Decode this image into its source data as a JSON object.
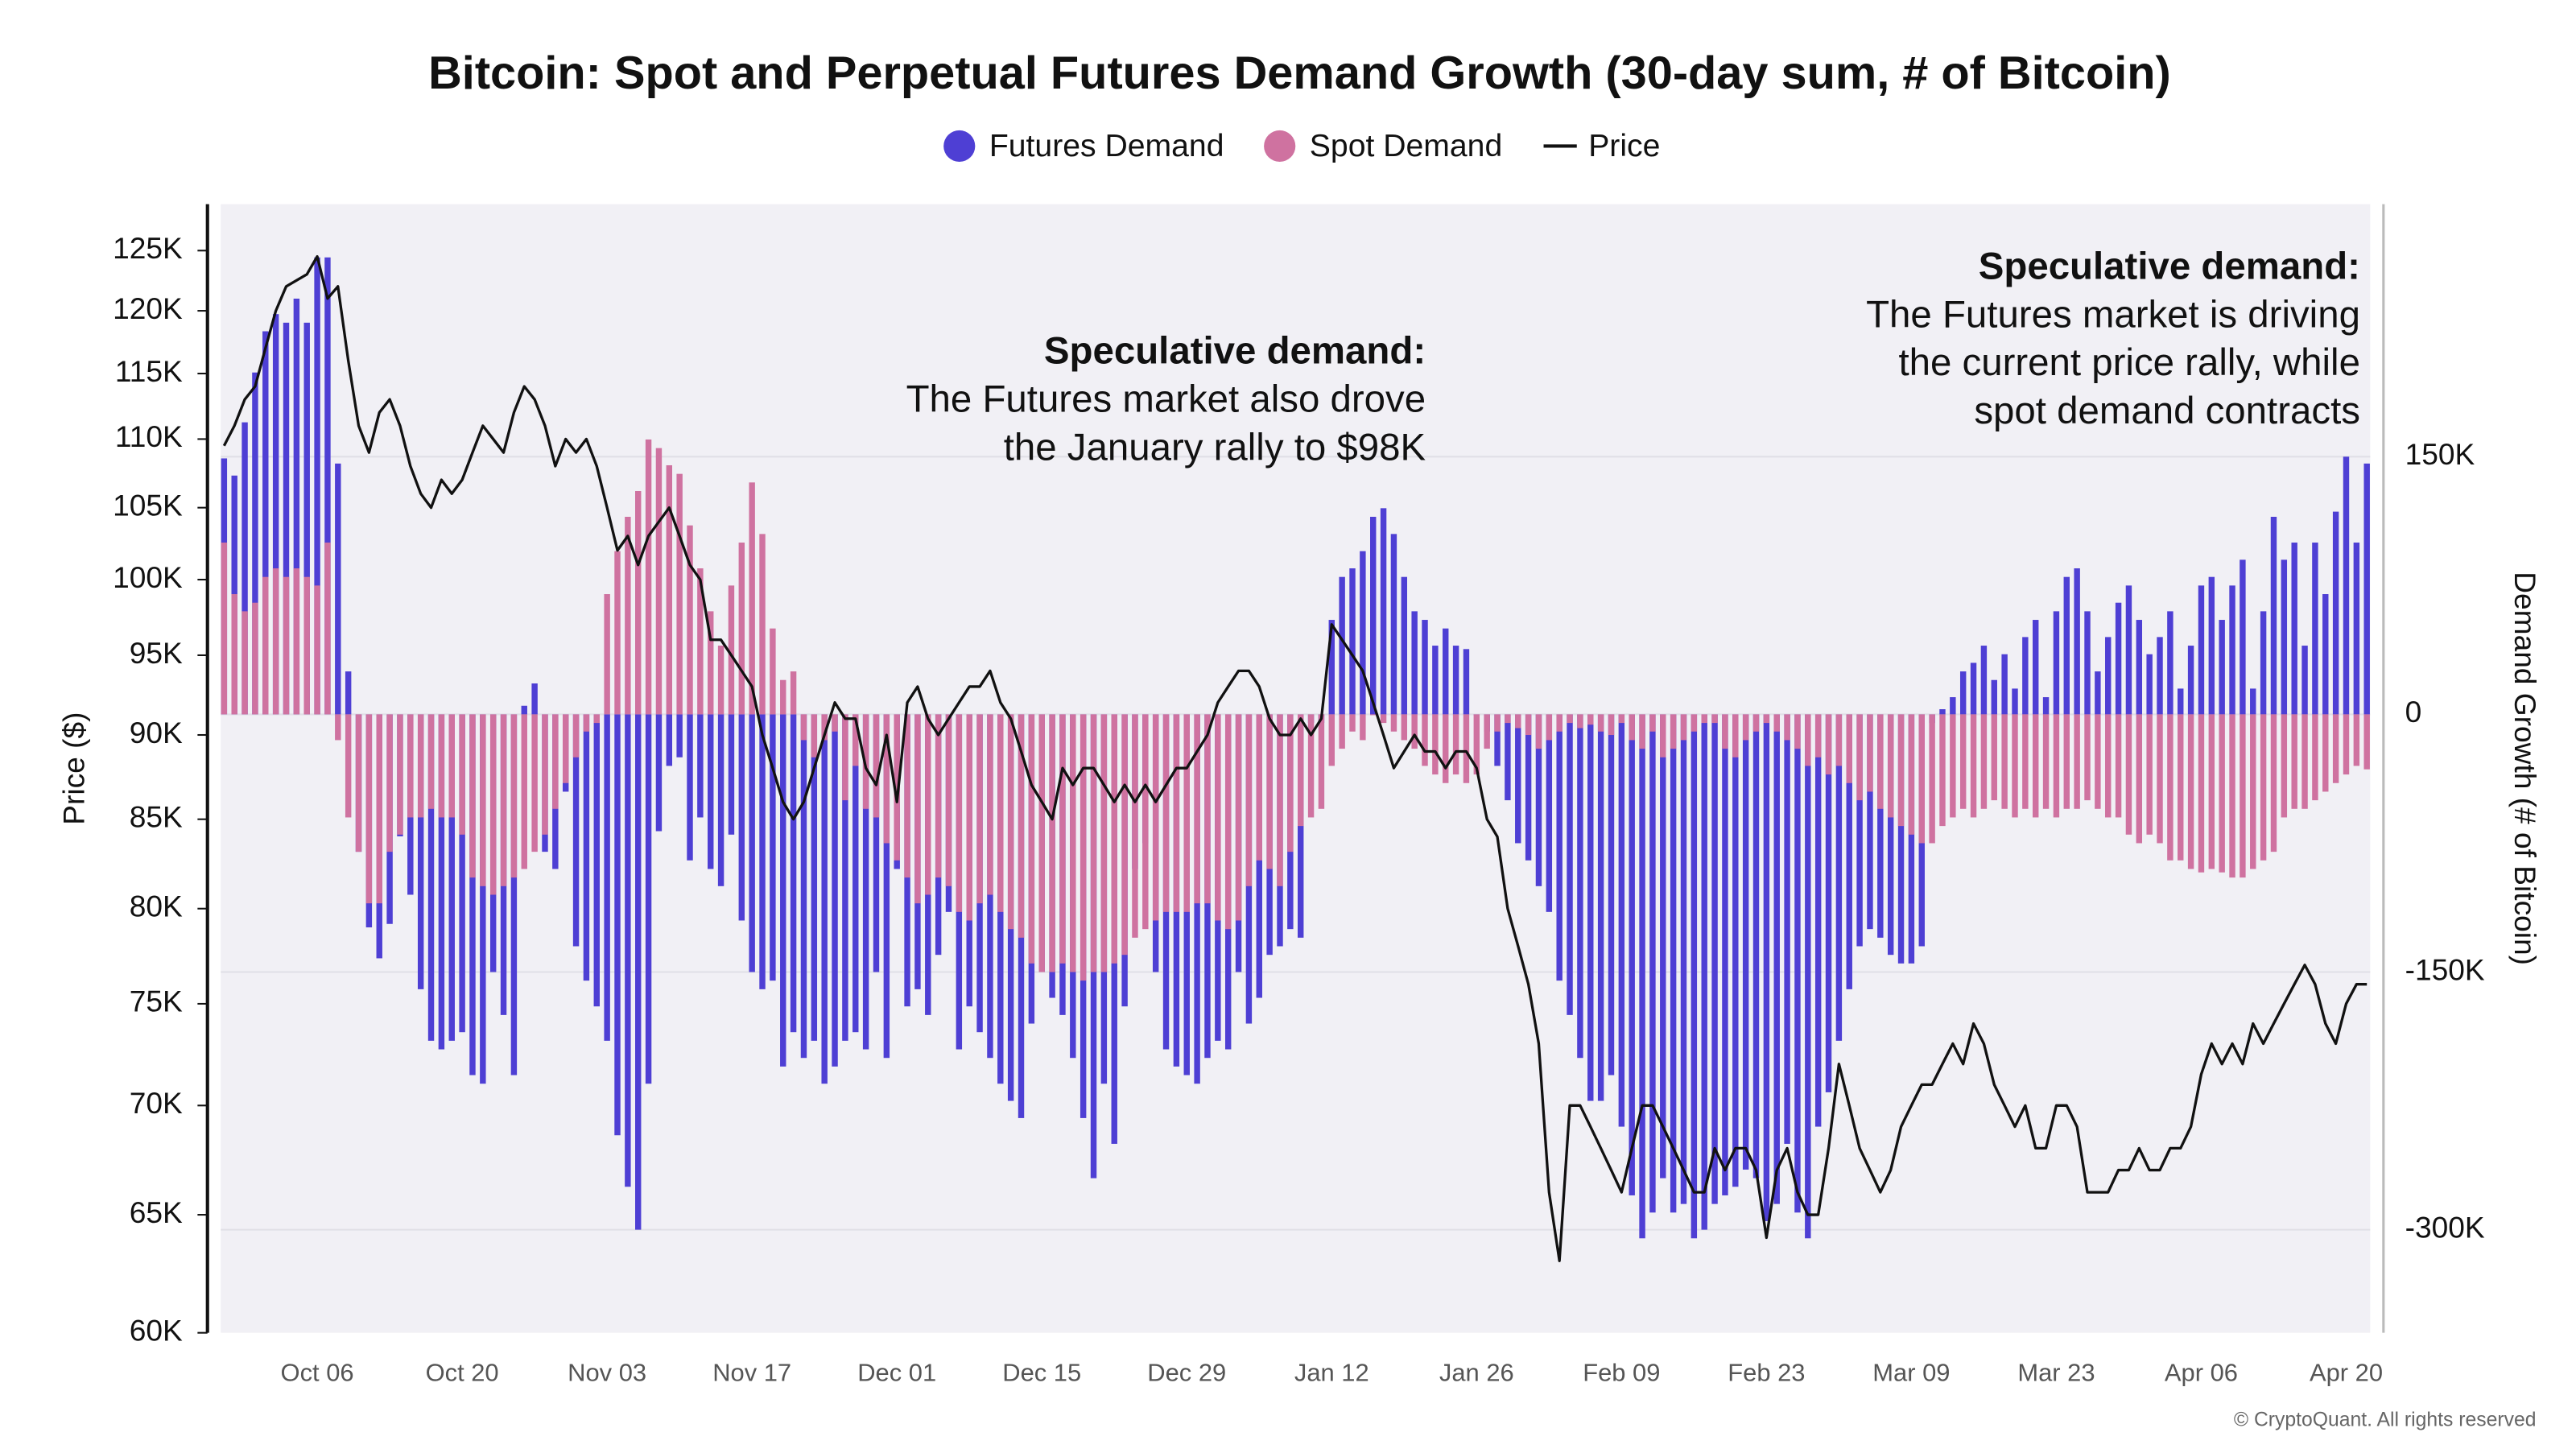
{
  "chart_data": {
    "type": "bar",
    "title": "Bitcoin: Spot and Perpetual Futures Demand Growth (30-day sum, # of Bitcoin)",
    "y_label": "Price ($)",
    "y2_label": "Demand Growth (# of Bitcoin)",
    "copyright": "© CryptoQuant. All rights reserved",
    "annotations": [
      {
        "title": "Speculative demand:",
        "lines": [
          "The Futures market also drove",
          "the January rally to $98K"
        ]
      },
      {
        "title": "Speculative demand:",
        "lines": [
          "The Futures market is driving",
          "the current price rally, while",
          "spot demand contracts"
        ]
      }
    ],
    "ylog": true,
    "ylim": [
      60000,
      129000
    ],
    "yticks": [
      {
        "value": 60000,
        "label": "60K"
      },
      {
        "value": 65000,
        "label": "65K"
      },
      {
        "value": 70000,
        "label": "70K"
      },
      {
        "value": 75000,
        "label": "75K"
      },
      {
        "value": 80000,
        "label": "80K"
      },
      {
        "value": 85000,
        "label": "85K"
      },
      {
        "value": 90000,
        "label": "90K"
      },
      {
        "value": 95000,
        "label": "95K"
      },
      {
        "value": 100000,
        "label": "100K"
      },
      {
        "value": 105000,
        "label": "105K"
      },
      {
        "value": 110000,
        "label": "110K"
      },
      {
        "value": 115000,
        "label": "115K"
      },
      {
        "value": 120000,
        "label": "120K"
      },
      {
        "value": 125000,
        "label": "125K"
      }
    ],
    "y2lim": [
      -360000,
      297000
    ],
    "y2ticks": [
      {
        "value": -300000,
        "label": "-300K"
      },
      {
        "value": -150000,
        "label": "-150K"
      },
      0,
      {
        "value": 150000,
        "label": "150K"
      }
    ],
    "grid": true,
    "categories": [
      null,
      null,
      null,
      null,
      null,
      null,
      null,
      null,
      null,
      "Oct 06",
      null,
      null,
      null,
      null,
      null,
      null,
      null,
      null,
      null,
      null,
      null,
      null,
      null,
      "Oct 20",
      null,
      null,
      null,
      null,
      null,
      null,
      null,
      null,
      null,
      null,
      null,
      null,
      null,
      "Nov 03",
      null,
      null,
      null,
      null,
      null,
      null,
      null,
      null,
      null,
      null,
      null,
      null,
      null,
      "Nov 17",
      null,
      null,
      null,
      null,
      null,
      null,
      null,
      null,
      null,
      null,
      null,
      null,
      null,
      "Dec 01",
      null,
      null,
      null,
      null,
      null,
      null,
      null,
      null,
      null,
      null,
      null,
      null,
      null,
      "Dec 15",
      null,
      null,
      null,
      null,
      null,
      null,
      null,
      null,
      null,
      null,
      null,
      null,
      null,
      "Dec 29",
      null,
      null,
      null,
      null,
      null,
      null,
      null,
      null,
      null,
      null,
      null,
      null,
      null,
      "Jan 12",
      null,
      null,
      null,
      null,
      null,
      null,
      null,
      null,
      null,
      null,
      null,
      null,
      null,
      "Jan 26",
      null,
      null,
      null,
      null,
      null,
      null,
      null,
      null,
      null,
      null,
      null,
      null,
      null,
      "Feb 09",
      null,
      null,
      null,
      null,
      null,
      null,
      null,
      null,
      null,
      null,
      null,
      null,
      null,
      "Feb 23",
      null,
      null,
      null,
      null,
      null,
      null,
      null,
      null,
      null,
      null,
      null,
      null,
      null,
      "Mar 09",
      null,
      null,
      null,
      null,
      null,
      null,
      null,
      null,
      null,
      null,
      null,
      null,
      null,
      "Mar 23",
      null,
      null,
      null,
      null,
      null,
      null,
      null,
      null,
      null,
      null,
      null,
      null,
      null,
      "Apr 06",
      null,
      null,
      null,
      null,
      null,
      null,
      null,
      null,
      null,
      null,
      null,
      null,
      null,
      "Apr 20",
      null,
      null
    ],
    "series": [
      {
        "name": "Futures Demand",
        "type": "bar",
        "axis": "y2",
        "color": "#4e3fd4",
        "values": [
          149000,
          139000,
          170000,
          199000,
          223000,
          233000,
          228000,
          242000,
          228000,
          266000,
          266000,
          146000,
          25000,
          -80000,
          -124000,
          -142000,
          -122000,
          -71000,
          -105000,
          -160000,
          -190000,
          -195000,
          -190000,
          -185000,
          -210000,
          -215000,
          -150000,
          -175000,
          -210000,
          5000,
          18000,
          -80000,
          -90000,
          -45000,
          -135000,
          -155000,
          -170000,
          -190000,
          -245000,
          -275000,
          -300000,
          -215000,
          -68000,
          -30000,
          -25000,
          -85000,
          -60000,
          -90000,
          -100000,
          -70000,
          -120000,
          -150000,
          -160000,
          -155000,
          -205000,
          -185000,
          -200000,
          -190000,
          -215000,
          -205000,
          -190000,
          -185000,
          -195000,
          -150000,
          -200000,
          -90000,
          -170000,
          -160000,
          -175000,
          -140000,
          -115000,
          -195000,
          -170000,
          -185000,
          -200000,
          -215000,
          -225000,
          -235000,
          -180000,
          -150000,
          -165000,
          -175000,
          -200000,
          -235000,
          -270000,
          -215000,
          -250000,
          -170000,
          -90000,
          -75000,
          -150000,
          -195000,
          -205000,
          -210000,
          -215000,
          -200000,
          -190000,
          -195000,
          -150000,
          -180000,
          -165000,
          -140000,
          -135000,
          -125000,
          -130000,
          -5000,
          -5000,
          55000,
          80000,
          85000,
          95000,
          115000,
          120000,
          105000,
          80000,
          60000,
          55000,
          40000,
          50000,
          40000,
          38000,
          0,
          -10000,
          -30000,
          -50000,
          -75000,
          -85000,
          -100000,
          -115000,
          -155000,
          -175000,
          -200000,
          -225000,
          -225000,
          -210000,
          -240000,
          -280000,
          -305000,
          -290000,
          -270000,
          -290000,
          -285000,
          -305000,
          -300000,
          -285000,
          -280000,
          -275000,
          -265000,
          -270000,
          -295000,
          -285000,
          -250000,
          -290000,
          -305000,
          -240000,
          -220000,
          -190000,
          -160000,
          -135000,
          -125000,
          -130000,
          -140000,
          -145000,
          -145000,
          -135000,
          -5000,
          3000,
          10000,
          25000,
          30000,
          40000,
          20000,
          35000,
          15000,
          45000,
          55000,
          10000,
          60000,
          80000,
          85000,
          60000,
          25000,
          45000,
          65000,
          75000,
          55000,
          35000,
          45000,
          60000,
          15000,
          40000,
          75000,
          80000,
          55000,
          75000,
          90000,
          15000,
          60000,
          115000,
          90000,
          100000,
          40000,
          100000,
          70000,
          118000,
          150000,
          100000,
          146000
        ]
      },
      {
        "name": "Spot Demand",
        "type": "bar",
        "axis": "y2",
        "color": "#cf72a0",
        "values": [
          100000,
          70000,
          60000,
          65000,
          80000,
          85000,
          80000,
          85000,
          80000,
          75000,
          100000,
          -15000,
          -60000,
          -80000,
          -110000,
          -110000,
          -80000,
          -70000,
          -60000,
          -60000,
          -55000,
          -60000,
          -60000,
          -70000,
          -95000,
          -100000,
          -105000,
          -100000,
          -95000,
          -90000,
          -80000,
          -70000,
          -55000,
          -40000,
          -25000,
          -10000,
          -5000,
          70000,
          95000,
          115000,
          130000,
          160000,
          155000,
          145000,
          140000,
          110000,
          85000,
          60000,
          40000,
          75000,
          100000,
          135000,
          105000,
          50000,
          20000,
          25000,
          -15000,
          -25000,
          -15000,
          -10000,
          -50000,
          -30000,
          -55000,
          -60000,
          -75000,
          -85000,
          -95000,
          -110000,
          -105000,
          -95000,
          -100000,
          -115000,
          -120000,
          -110000,
          -105000,
          -115000,
          -125000,
          -130000,
          -145000,
          -150000,
          -150000,
          -145000,
          -150000,
          -155000,
          -150000,
          -150000,
          -145000,
          -140000,
          -130000,
          -125000,
          -120000,
          -115000,
          -115000,
          -115000,
          -110000,
          -110000,
          -120000,
          -125000,
          -120000,
          -100000,
          -85000,
          -90000,
          -100000,
          -80000,
          -65000,
          -60000,
          -55000,
          -30000,
          -20000,
          -10000,
          -15000,
          0,
          -5000,
          -10000,
          -15000,
          -20000,
          -30000,
          -35000,
          -40000,
          -35000,
          -40000,
          -35000,
          -20000,
          -10000,
          -5000,
          -8000,
          -12000,
          -20000,
          -15000,
          -10000,
          -5000,
          -8000,
          -6000,
          -10000,
          -12000,
          -5000,
          -15000,
          -20000,
          -10000,
          -25000,
          -20000,
          -15000,
          -10000,
          -5000,
          -5000,
          -20000,
          -25000,
          -15000,
          -10000,
          -5000,
          -10000,
          -15000,
          -20000,
          -30000,
          -25000,
          -35000,
          -30000,
          -40000,
          -50000,
          -45000,
          -55000,
          -60000,
          -65000,
          -70000,
          -75000,
          -75000,
          -65000,
          -60000,
          -55000,
          -60000,
          -55000,
          -50000,
          -55000,
          -60000,
          -55000,
          -60000,
          -55000,
          -60000,
          -55000,
          -55000,
          -50000,
          -55000,
          -60000,
          -60000,
          -70000,
          -75000,
          -70000,
          -75000,
          -85000,
          -85000,
          -90000,
          -92000,
          -90000,
          -92000,
          -95000,
          -95000,
          -90000,
          -85000,
          -80000,
          -60000,
          -55000,
          -55000,
          -50000,
          -45000,
          -40000,
          -35000,
          -30000,
          -32000
        ]
      },
      {
        "name": "Price",
        "type": "line",
        "color": "#111111",
        "values": [
          109500,
          111000,
          113000,
          114000,
          117000,
          120000,
          122000,
          122500,
          123000,
          124500,
          121000,
          122000,
          116000,
          111000,
          109000,
          112000,
          113000,
          111000,
          108000,
          106000,
          105000,
          107000,
          106000,
          107000,
          109000,
          111000,
          110000,
          109000,
          112000,
          114000,
          113000,
          111000,
          108000,
          110000,
          109000,
          110000,
          108000,
          105000,
          102000,
          103000,
          101000,
          103000,
          104000,
          105000,
          103000,
          101000,
          100000,
          96000,
          96000,
          95000,
          94000,
          93000,
          90000,
          88000,
          86000,
          85000,
          86000,
          88000,
          90000,
          92000,
          91000,
          91000,
          88000,
          87000,
          90000,
          86000,
          92000,
          93000,
          91000,
          90000,
          91000,
          92000,
          93000,
          93000,
          94000,
          92000,
          91000,
          89000,
          87000,
          86000,
          85000,
          88000,
          87000,
          88000,
          88000,
          87000,
          86000,
          87000,
          86000,
          87000,
          86000,
          87000,
          88000,
          88000,
          89000,
          90000,
          92000,
          93000,
          94000,
          94000,
          93000,
          91000,
          90000,
          90000,
          91000,
          90000,
          91000,
          97000,
          96000,
          95000,
          94000,
          92000,
          90000,
          88000,
          89000,
          90000,
          89000,
          89000,
          88000,
          89000,
          89000,
          88000,
          85000,
          84000,
          80000,
          78000,
          76000,
          73000,
          66000,
          63000,
          70000,
          70000,
          69000,
          68000,
          67000,
          66000,
          68000,
          70000,
          70000,
          69000,
          68000,
          67000,
          66000,
          66000,
          68000,
          67000,
          68000,
          68000,
          67000,
          64000,
          67000,
          68000,
          66000,
          65000,
          65000,
          68000,
          72000,
          70000,
          68000,
          67000,
          66000,
          67000,
          69000,
          70000,
          71000,
          71000,
          72000,
          73000,
          72000,
          74000,
          73000,
          71000,
          70000,
          69000,
          70000,
          68000,
          68000,
          70000,
          70000,
          69000,
          66000,
          66000,
          66000,
          67000,
          67000,
          68000,
          67000,
          67000,
          68000,
          68000,
          69000,
          71500,
          73000,
          72000,
          73000,
          72000,
          74000,
          73000,
          74000,
          75000,
          76000,
          77000,
          76000,
          74000,
          73000,
          75000,
          76000,
          76000
        ]
      }
    ]
  }
}
